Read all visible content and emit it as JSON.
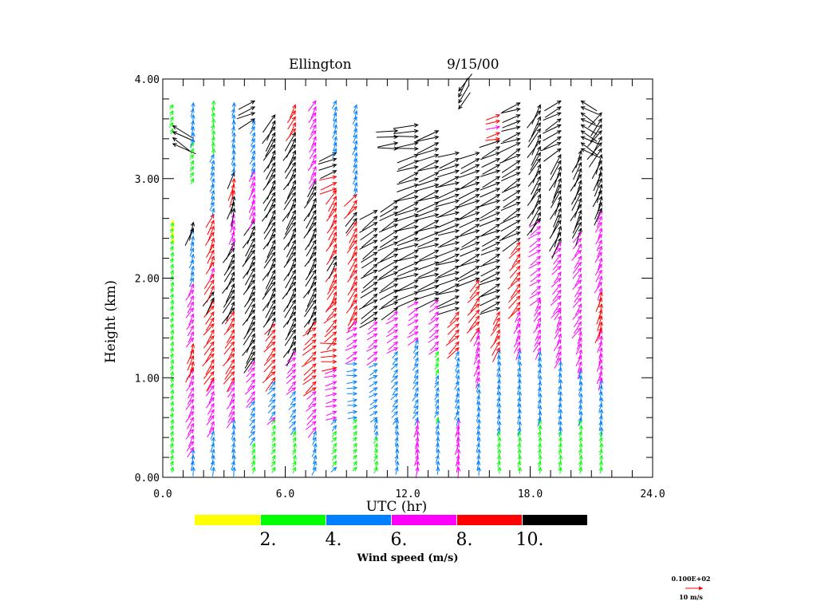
{
  "chart_data": {
    "type": "wind-profile-vectors",
    "title_site": "Ellington",
    "title_date": "9/15/00",
    "xlabel": "UTC (hr)",
    "ylabel": "Height (km)",
    "xlim": [
      0,
      24
    ],
    "ylim": [
      0,
      4
    ],
    "x_ticks": [
      "0.0",
      "6.0",
      "12.0",
      "18.0",
      "24.0"
    ],
    "x_tick_values": [
      0,
      6,
      12,
      18,
      24
    ],
    "y_ticks": [
      "0.00",
      "1.00",
      "2.00",
      "3.00",
      "4.00"
    ],
    "y_tick_values": [
      0,
      1,
      2,
      3,
      4
    ],
    "minor_x_step": 1,
    "minor_y_step": 0.2,
    "colorbar": {
      "title": "Wind speed (m/s)",
      "bins": [
        {
          "min": 0,
          "max": 2,
          "color": "#ffff00"
        },
        {
          "min": 2,
          "max": 4,
          "color": "#00ff00"
        },
        {
          "min": 4,
          "max": 6,
          "color": "#0080ff"
        },
        {
          "min": 6,
          "max": 8,
          "color": "#ff00ff"
        },
        {
          "min": 8,
          "max": 10,
          "color": "#ff0000"
        },
        {
          "min": 10,
          "max": 99,
          "color": "#000000"
        }
      ],
      "labels": [
        "2.",
        "4.",
        "6.",
        "8.",
        "10."
      ],
      "label_values": [
        2,
        4,
        6,
        8,
        10
      ]
    },
    "reference_vector": {
      "value_label": "0.100E+02",
      "unit_label": "10 m/s",
      "speed": 10,
      "color": "#ff0000"
    },
    "bin_spacing_km": 0.06,
    "profiles": [
      {
        "hour": 0.5,
        "layers": [
          [
            0.1,
            2.6,
            3.0,
            20
          ],
          [
            2.4,
            2.6,
            1.5,
            10
          ],
          [
            3.5,
            3.8,
            3.2,
            30
          ],
          [
            3.35,
            3.55,
            14,
            300
          ]
        ]
      },
      {
        "hour": 1.5,
        "layers": [
          [
            0.1,
            0.3,
            5.0,
            10
          ],
          [
            0.3,
            1.1,
            7.0,
            30
          ],
          [
            1.1,
            1.4,
            9.0,
            20
          ],
          [
            1.4,
            2.0,
            7.0,
            30
          ],
          [
            2.0,
            2.5,
            5.0,
            20
          ],
          [
            2.5,
            2.6,
            10.5,
            20
          ],
          [
            3.0,
            3.4,
            3.5,
            30
          ],
          [
            3.4,
            3.8,
            5.0,
            10
          ]
        ]
      },
      {
        "hour": 2.5,
        "layers": [
          [
            0.1,
            0.5,
            5.0,
            15
          ],
          [
            0.5,
            1.0,
            7.0,
            30
          ],
          [
            1.0,
            1.8,
            9.0,
            35
          ],
          [
            1.8,
            2.1,
            10.5,
            30
          ],
          [
            2.1,
            2.7,
            8.5,
            25
          ],
          [
            2.7,
            3.3,
            5.0,
            20
          ],
          [
            3.3,
            3.8,
            3.5,
            10
          ]
        ]
      },
      {
        "hour": 3.5,
        "layers": [
          [
            0.1,
            0.6,
            5.0,
            10
          ],
          [
            0.6,
            1.0,
            7.0,
            30
          ],
          [
            1.0,
            1.7,
            9.0,
            35
          ],
          [
            1.7,
            2.4,
            11.0,
            30
          ],
          [
            2.4,
            2.7,
            7.0,
            15
          ],
          [
            2.7,
            3.1,
            10.5,
            15
          ],
          [
            3.1,
            3.8,
            4.5,
            10
          ]
        ]
      },
      {
        "hour": 4.5,
        "layers": [
          [
            0.1,
            0.4,
            3.5,
            20
          ],
          [
            0.4,
            0.8,
            5.0,
            35
          ],
          [
            0.8,
            1.2,
            7.0,
            40
          ],
          [
            1.2,
            2.6,
            11.0,
            30
          ],
          [
            2.6,
            3.1,
            7.5,
            20
          ],
          [
            3.1,
            3.6,
            5.0,
            25
          ],
          [
            3.6,
            3.8,
            11.0,
            65
          ]
        ]
      },
      {
        "hour": 5.5,
        "layers": [
          [
            0.1,
            0.6,
            3.5,
            30
          ],
          [
            0.6,
            1.0,
            6.0,
            40
          ],
          [
            1.0,
            1.6,
            9.0,
            40
          ],
          [
            1.6,
            3.7,
            11.5,
            30
          ]
        ]
      },
      {
        "hour": 6.5,
        "layers": [
          [
            0.1,
            0.5,
            3.5,
            20
          ],
          [
            0.5,
            0.9,
            5.0,
            40
          ],
          [
            0.9,
            1.3,
            7.0,
            45
          ],
          [
            1.3,
            3.5,
            11.5,
            30
          ],
          [
            3.5,
            3.8,
            8.5,
            30
          ]
        ]
      },
      {
        "hour": 7.5,
        "layers": [
          [
            0.1,
            0.5,
            5.0,
            20
          ],
          [
            0.5,
            0.9,
            7.0,
            45
          ],
          [
            0.9,
            1.6,
            9.0,
            50
          ],
          [
            1.6,
            3.0,
            11.0,
            30
          ],
          [
            3.0,
            3.8,
            7.0,
            30
          ]
        ]
      },
      {
        "hour": 8.5,
        "layers": [
          [
            0.1,
            0.6,
            4.0,
            40
          ],
          [
            0.6,
            1.1,
            6.5,
            75
          ],
          [
            1.1,
            1.4,
            9.0,
            85
          ],
          [
            1.4,
            1.8,
            8.5,
            45
          ],
          [
            1.8,
            2.9,
            9.5,
            30
          ],
          [
            2.9,
            3.3,
            10.5,
            70
          ],
          [
            3.3,
            3.8,
            5.0,
            20
          ]
        ]
      },
      {
        "hour": 9.5,
        "layers": [
          [
            0.1,
            0.6,
            3.0,
            40
          ],
          [
            0.6,
            1.2,
            5.5,
            85
          ],
          [
            1.2,
            1.6,
            7.0,
            60
          ],
          [
            1.6,
            2.6,
            9.0,
            30
          ],
          [
            2.6,
            2.9,
            10.5,
            40
          ],
          [
            2.9,
            3.8,
            5.0,
            20
          ]
        ]
      },
      {
        "hour": 10.5,
        "layers": [
          [
            0.1,
            0.6,
            4.0,
            20
          ],
          [
            0.6,
            1.2,
            5.0,
            60
          ],
          [
            1.2,
            1.6,
            7.0,
            55
          ],
          [
            1.6,
            2.7,
            11.0,
            55
          ]
        ]
      },
      {
        "hour": 11.5,
        "layers": [
          [
            0.1,
            0.6,
            4.5,
            10
          ],
          [
            0.6,
            1.3,
            5.0,
            40
          ],
          [
            1.3,
            1.7,
            7.0,
            55
          ],
          [
            1.7,
            2.8,
            12.0,
            60
          ],
          [
            3.3,
            3.5,
            12.0,
            85
          ]
        ]
      },
      {
        "hour": 12.5,
        "layers": [
          [
            0.1,
            0.6,
            6.5,
            10
          ],
          [
            0.6,
            1.4,
            5.0,
            30
          ],
          [
            1.4,
            1.8,
            7.0,
            55
          ],
          [
            1.8,
            3.3,
            13.0,
            70
          ],
          [
            3.3,
            3.6,
            13.5,
            85
          ]
        ]
      },
      {
        "hour": 13.5,
        "layers": [
          [
            0.1,
            0.6,
            4.5,
            10
          ],
          [
            0.6,
            1.3,
            4.0,
            25
          ],
          [
            1.3,
            1.8,
            6.5,
            50
          ],
          [
            1.8,
            3.5,
            13.0,
            70
          ]
        ]
      },
      {
        "hour": 14.5,
        "layers": [
          [
            0.1,
            0.6,
            6.5,
            10
          ],
          [
            0.6,
            1.3,
            5.0,
            20
          ],
          [
            1.3,
            1.7,
            8.5,
            45
          ],
          [
            1.7,
            3.3,
            13.0,
            70
          ],
          [
            3.7,
            3.9,
            12.0,
            210
          ]
        ]
      },
      {
        "hour": 15.5,
        "layers": [
          [
            0.1,
            1.0,
            5.0,
            10
          ],
          [
            1.0,
            1.5,
            6.5,
            20
          ],
          [
            1.5,
            2.0,
            9.0,
            40
          ],
          [
            2.0,
            3.3,
            12.5,
            65
          ]
        ]
      },
      {
        "hour": 16.5,
        "layers": [
          [
            0.1,
            0.5,
            3.5,
            10
          ],
          [
            0.5,
            1.3,
            5.0,
            10
          ],
          [
            1.3,
            1.7,
            8.5,
            30
          ],
          [
            1.7,
            3.4,
            12.0,
            65
          ],
          [
            3.4,
            3.7,
            8.5,
            75
          ]
        ]
      },
      {
        "hour": 17.5,
        "layers": [
          [
            0.1,
            0.5,
            3.5,
            10
          ],
          [
            0.5,
            1.3,
            5.0,
            10
          ],
          [
            1.3,
            1.7,
            7.0,
            25
          ],
          [
            1.7,
            2.4,
            9.0,
            40
          ],
          [
            2.4,
            3.4,
            12.0,
            60
          ],
          [
            3.4,
            3.8,
            11.5,
            70
          ]
        ]
      },
      {
        "hour": 18.5,
        "layers": [
          [
            0.1,
            0.6,
            3.5,
            10
          ],
          [
            0.6,
            1.3,
            5.0,
            10
          ],
          [
            1.3,
            1.8,
            7.0,
            30
          ],
          [
            1.8,
            2.6,
            7.5,
            55
          ],
          [
            2.6,
            3.8,
            12.0,
            30
          ]
        ]
      },
      {
        "hour": 19.5,
        "layers": [
          [
            0.1,
            0.5,
            3.5,
            10
          ],
          [
            0.5,
            1.2,
            5.0,
            10
          ],
          [
            1.2,
            1.7,
            7.0,
            25
          ],
          [
            1.7,
            2.4,
            7.5,
            40
          ],
          [
            2.4,
            3.3,
            12.0,
            25
          ],
          [
            3.3,
            3.8,
            11.5,
            60
          ]
        ]
      },
      {
        "hour": 20.5,
        "layers": [
          [
            0.1,
            0.6,
            3.5,
            10
          ],
          [
            0.6,
            1.1,
            5.0,
            10
          ],
          [
            1.1,
            1.5,
            7.0,
            20
          ],
          [
            1.5,
            2.5,
            7.5,
            35
          ],
          [
            2.5,
            3.3,
            11.0,
            25
          ],
          [
            3.3,
            3.8,
            11.0,
            300
          ]
        ]
      },
      {
        "hour": 21.5,
        "layers": [
          [
            0.1,
            0.5,
            3.5,
            10
          ],
          [
            0.5,
            1.0,
            5.0,
            10
          ],
          [
            1.0,
            1.5,
            7.0,
            15
          ],
          [
            1.5,
            1.9,
            9.0,
            15
          ],
          [
            1.9,
            2.7,
            7.0,
            25
          ],
          [
            2.7,
            3.3,
            11.0,
            20
          ],
          [
            3.3,
            3.7,
            12.0,
            35
          ]
        ]
      }
    ]
  }
}
